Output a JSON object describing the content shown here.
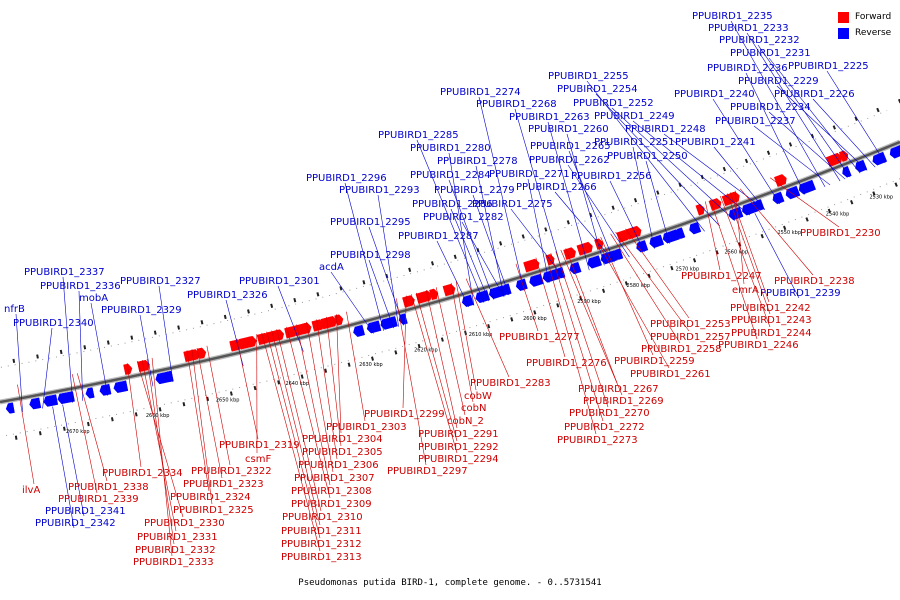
{
  "legend": {
    "forward_label": "Forward",
    "reverse_label": "Reverse",
    "forward_color": "#ff0000",
    "reverse_color": "#0000ff"
  },
  "caption": "Pseudomonas putida BIRD-1, complete genome. - 0..5731541",
  "ticks": [
    "2530 kbp",
    "2540 kbp",
    "2550 kbp",
    "2560 kbp",
    "2570 kbp",
    "2580 kbp",
    "2590 kbp",
    "2600 kbp",
    "2610 kbp",
    "2620 kbp",
    "2630 kbp",
    "2640 kbp",
    "2650 kbp",
    "2660 kbp",
    "2670 kbp"
  ],
  "reverse_labels": [
    "PPUBIRD1_2235",
    "PPUBIRD1_2233",
    "PPUBIRD1_2232",
    "PPUBIRD1_2231",
    "PPUBIRD1_2236",
    "PPUBIRD1_2225",
    "PPUBIRD1_2229",
    "PPUBIRD1_2240",
    "PPUBIRD1_2226",
    "PPUBIRD1_2234",
    "PPUBIRD1_2237",
    "PPUBIRD1_2241",
    "PPUBIRD1_2255",
    "PPUBIRD1_2274",
    "PPUBIRD1_2254",
    "PPUBIRD1_2268",
    "PPUBIRD1_2252",
    "PPUBIRD1_2263",
    "PPUBIRD1_2249",
    "PPUBIRD1_2260",
    "PPUBIRD1_2248",
    "PPUBIRD1_2285",
    "PPUBIRD1_2265",
    "PPUBIRD1_2251",
    "PPUBIRD1_2280",
    "PPUBIRD1_2262",
    "PPUBIRD1_2250",
    "PPUBIRD1_2278",
    "PPUBIRD1_2271",
    "PPUBIRD1_2256",
    "PPUBIRD1_2296",
    "PPUBIRD1_2284",
    "PPUBIRD1_2266",
    "PPUBIRD1_2293",
    "PPUBIRD1_2279",
    "PPUBIRD1_2286",
    "PPUBIRD1_2275",
    "PPUBIRD1_2295",
    "PPUBIRD1_2282",
    "PPUBIRD1_2287",
    "PPUBIRD1_2298",
    "acdA",
    "PPUBIRD1_2337",
    "PPUBIRD1_2327",
    "PPUBIRD1_2301",
    "PPUBIRD1_2336",
    "mobA",
    "PPUBIRD1_2326",
    "nfrB",
    "PPUBIRD1_2329",
    "PPUBIRD1_2340",
    "PPUBIRD1_2341",
    "PPUBIRD1_2342",
    "PPUBIRD1_2239"
  ],
  "forward_labels": [
    "PPUBIRD1_2230",
    "PPUBIRD1_2247",
    "PPUBIRD1_2238",
    "emrA",
    "PPUBIRD1_2242",
    "PPUBIRD1_2243",
    "PPUBIRD1_2244",
    "PPUBIRD1_2246",
    "PPUBIRD1_2253",
    "PPUBIRD1_2257",
    "PPUBIRD1_2277",
    "PPUBIRD1_2258",
    "PPUBIRD1_2259",
    "PPUBIRD1_2276",
    "PPUBIRD1_2261",
    "PPUBIRD1_2283",
    "PPUBIRD1_2267",
    "cobW",
    "PPUBIRD1_2269",
    "cobN",
    "PPUBIRD1_2270",
    "PPUBIRD1_2299",
    "cobN_2",
    "PPUBIRD1_2272",
    "PPUBIRD1_2303",
    "PPUBIRD1_2291",
    "PPUBIRD1_2273",
    "PPUBIRD1_2304",
    "PPUBIRD1_2292",
    "PPUBIRD1_2319",
    "PPUBIRD1_2305",
    "PPUBIRD1_2294",
    "csmF",
    "PPUBIRD1_2306",
    "PPUBIRD1_2297",
    "PPUBIRD1_2322",
    "PPUBIRD1_2307",
    "PPUBIRD1_2334",
    "PPUBIRD1_2323",
    "ilvA",
    "PPUBIRD1_2338",
    "PPUBIRD1_2308",
    "PPUBIRD1_2324",
    "PPUBIRD1_2339",
    "PPUBIRD1_2309",
    "PPUBIRD1_2325",
    "PPUBIRD1_2310",
    "PPUBIRD1_2330",
    "PPUBIRD1_2311",
    "PPUBIRD1_2331",
    "PPUBIRD1_2312",
    "PPUBIRD1_2332",
    "PPUBIRD1_2313",
    "PPUBIRD1_2333"
  ]
}
